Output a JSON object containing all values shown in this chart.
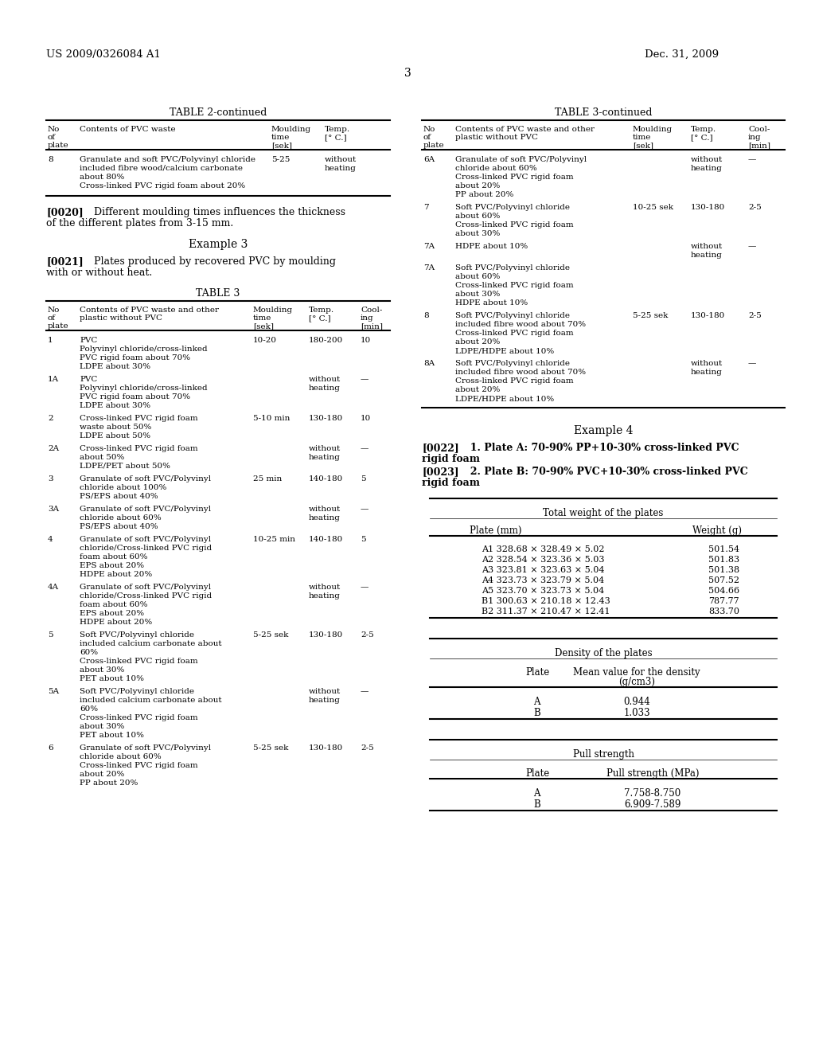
{
  "bg_color": "#ffffff",
  "header_left": "US 2009/0326084 A1",
  "header_right": "Dec. 31, 2009",
  "page_number": "3"
}
